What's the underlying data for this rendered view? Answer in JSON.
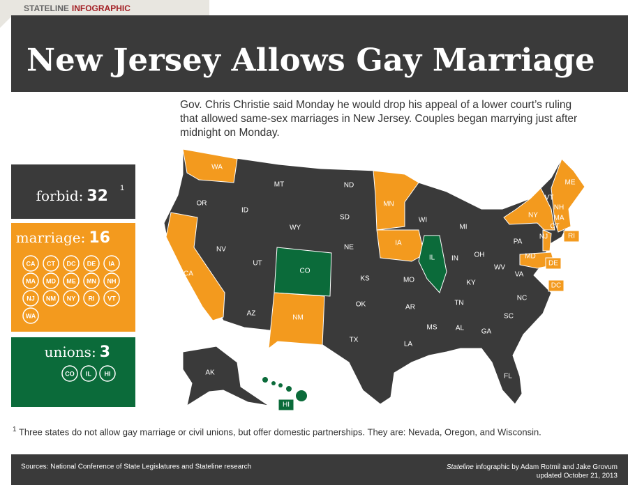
{
  "header": {
    "kicker_plain": "STATELINE",
    "kicker_bold": "INFOGRAPHIC",
    "title": "New Jersey Allows Gay Marriage"
  },
  "description": "Gov. Chris Christie said Monday he would drop his appeal of a lower court’s ruling that allowed same-sex marriages in New Jersey. Couples began marrying just after midnight on Monday.",
  "legend": {
    "forbid": {
      "label": "forbid:",
      "count": 32,
      "marker": "1",
      "color": "#3a3a3a"
    },
    "marriage": {
      "label": "marriage:",
      "count": 16,
      "color": "#f39a1e",
      "states": [
        "CA",
        "CT",
        "DC",
        "DE",
        "IA",
        "MA",
        "MD",
        "ME",
        "MN",
        "NH",
        "NJ",
        "NM",
        "NY",
        "RI",
        "VT",
        "WA"
      ]
    },
    "unions": {
      "label": "unions:",
      "count": 3,
      "color": "#0b6b3a",
      "states": [
        "CO",
        "IL",
        "HI"
      ]
    }
  },
  "map_labels": [
    "WA",
    "OR",
    "CA",
    "NV",
    "ID",
    "MT",
    "WY",
    "UT",
    "AZ",
    "CO",
    "NM",
    "ND",
    "SD",
    "NE",
    "KS",
    "OK",
    "TX",
    "MN",
    "IA",
    "MO",
    "AR",
    "LA",
    "WI",
    "IL",
    "MI",
    "IN",
    "OH",
    "KY",
    "TN",
    "MS",
    "AL",
    "GA",
    "FL",
    "SC",
    "NC",
    "VA",
    "WV",
    "PA",
    "NY",
    "VT",
    "NH",
    "ME",
    "MA",
    "CT",
    "RI",
    "NJ",
    "DE",
    "MD",
    "DC",
    "AK",
    "HI"
  ],
  "footnote": {
    "marker": "1",
    "text": "Three states do not allow gay marriage or civil unions, but offer domestic partnerships. They are: Nevada, Oregon, and Wisconsin."
  },
  "footer": {
    "sources": "Sources: National Conference of State Legislatures and Stateline research",
    "credit_italic": "Stateline",
    "credit": " infographic by Adam Rotmil and Jake Grovum",
    "updated": "updated October 21, 2013"
  }
}
